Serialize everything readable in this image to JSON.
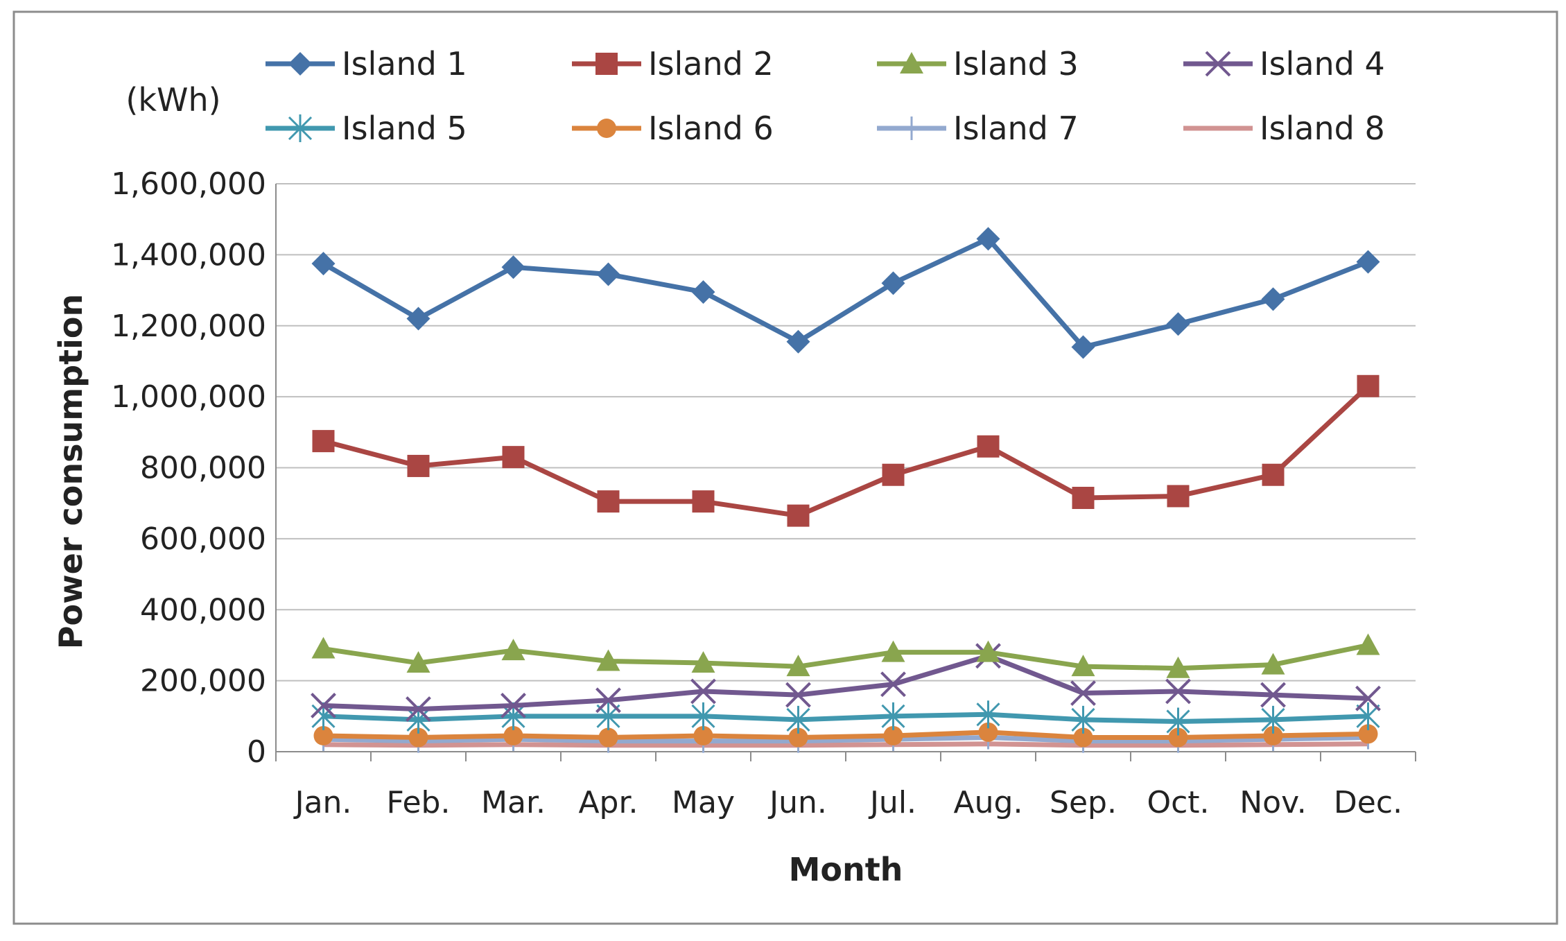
{
  "chart_data": {
    "type": "line",
    "title": "",
    "unit_label": "(kWh)",
    "xlabel": "Month",
    "ylabel": "Power consumption",
    "categories": [
      "Jan.",
      "Feb.",
      "Mar.",
      "Apr.",
      "May",
      "Jun.",
      "Jul.",
      "Aug.",
      "Sep.",
      "Oct.",
      "Nov.",
      "Dec."
    ],
    "ylim": [
      0,
      1600000
    ],
    "yticks": [
      0,
      200000,
      400000,
      600000,
      800000,
      1000000,
      1200000,
      1400000,
      1600000
    ],
    "ytick_labels": [
      "0",
      "200,000",
      "400,000",
      "600,000",
      "800,000",
      "1,000,000",
      "1,200,000",
      "1,400,000",
      "1,600,000"
    ],
    "grid": true,
    "legend_position": "top",
    "series": [
      {
        "name": "Island 1",
        "color": "#4572A7",
        "marker": "diamond",
        "values": [
          1375000,
          1220000,
          1365000,
          1345000,
          1295000,
          1155000,
          1320000,
          1445000,
          1140000,
          1205000,
          1275000,
          1380000
        ]
      },
      {
        "name": "Island 2",
        "color": "#AA4643",
        "marker": "square",
        "values": [
          875000,
          805000,
          830000,
          705000,
          705000,
          665000,
          780000,
          860000,
          715000,
          720000,
          780000,
          1030000
        ]
      },
      {
        "name": "Island 3",
        "color": "#89A54E",
        "marker": "triangle",
        "values": [
          290000,
          250000,
          285000,
          255000,
          250000,
          240000,
          280000,
          280000,
          240000,
          235000,
          245000,
          300000
        ]
      },
      {
        "name": "Island 4",
        "color": "#71588F",
        "marker": "x",
        "values": [
          130000,
          120000,
          130000,
          145000,
          170000,
          160000,
          190000,
          270000,
          165000,
          170000,
          160000,
          150000
        ]
      },
      {
        "name": "Island 5",
        "color": "#4198AF",
        "marker": "star",
        "values": [
          100000,
          90000,
          100000,
          100000,
          100000,
          90000,
          100000,
          105000,
          90000,
          85000,
          90000,
          100000
        ]
      },
      {
        "name": "Island 6",
        "color": "#DB843D",
        "marker": "circle",
        "values": [
          45000,
          40000,
          45000,
          40000,
          45000,
          40000,
          45000,
          55000,
          40000,
          40000,
          45000,
          50000
        ]
      },
      {
        "name": "Island 7",
        "color": "#93A9CF",
        "marker": "plus",
        "values": [
          35000,
          30000,
          35000,
          30000,
          30000,
          30000,
          35000,
          40000,
          30000,
          30000,
          35000,
          40000
        ]
      },
      {
        "name": "Island 8",
        "color": "#D19392",
        "marker": "none",
        "values": [
          20000,
          18000,
          20000,
          18000,
          18000,
          18000,
          20000,
          22000,
          18000,
          18000,
          20000,
          22000
        ]
      }
    ]
  }
}
